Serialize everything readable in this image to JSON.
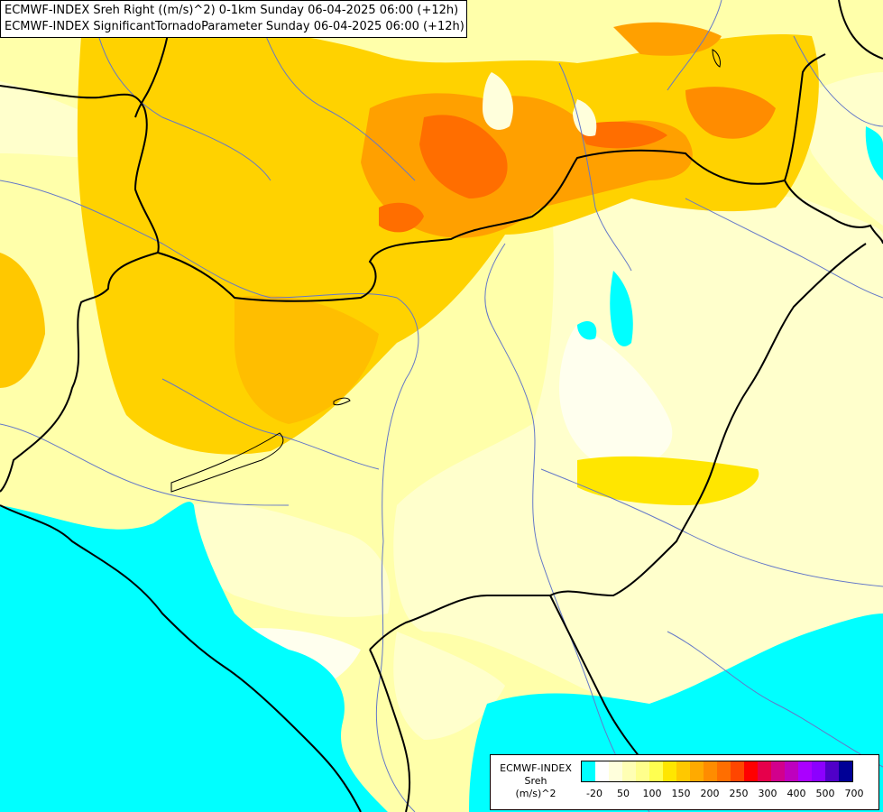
{
  "title": {
    "line1": "ECMWF-INDEX Sreh Right ((m/s)^2) 0-1km Sunday 06-04-2025 06:00 (+12h)",
    "line2": "ECMWF-INDEX SignificantTornadoParameter Sunday 06-04-2025 06:00 (+12h)"
  },
  "legend": {
    "source": "ECMWF-INDEX",
    "parameter": "Sreh",
    "unit": "(m/s)^2",
    "colors": [
      "#00ffff",
      "#ffffff",
      "#ffffdc",
      "#ffffb4",
      "#ffff8c",
      "#ffff50",
      "#ffe600",
      "#ffc800",
      "#ffaa00",
      "#ff8c00",
      "#ff6e00",
      "#ff4600",
      "#ff0000",
      "#e6004b",
      "#d2008c",
      "#be00be",
      "#aa00ff",
      "#8c00ff",
      "#5000c8",
      "#000096"
    ],
    "ticks": [
      "-20",
      "50",
      "100",
      "150",
      "200",
      "250",
      "300",
      "400",
      "500",
      "700"
    ]
  },
  "colors": {
    "negative": "#00ffff",
    "low": "#ffffcc",
    "moderate": "#ffd200",
    "high": "#ff6e00",
    "border": "#000000",
    "rivers": "#6478c8"
  }
}
